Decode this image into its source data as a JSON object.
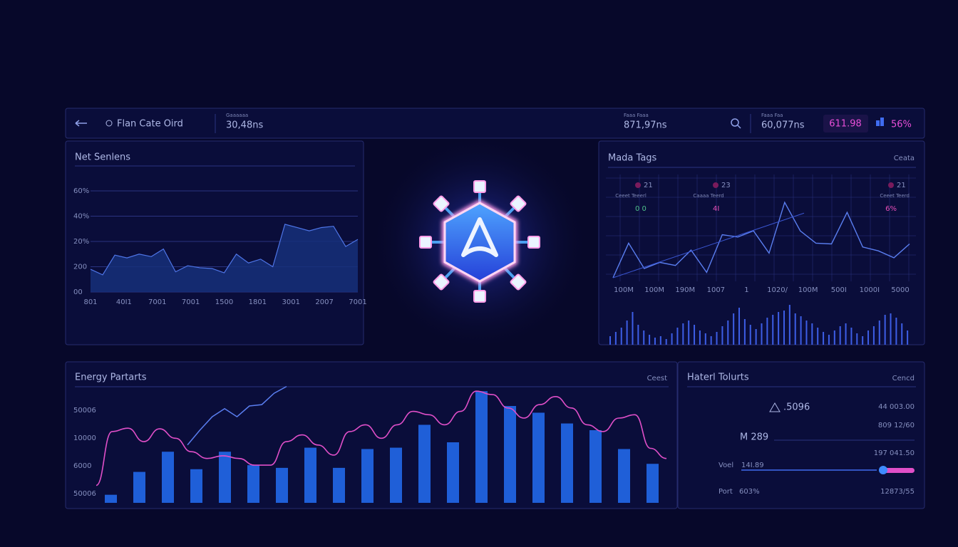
{
  "header": {
    "title": "Flan Cate Oird",
    "stats": [
      {
        "label": "Gaaaaaa",
        "value": "30,48ns"
      },
      {
        "label": "Faaa Faaa",
        "value": "871,97ns"
      },
      {
        "label": "Faaa Faa",
        "value": "60,077ns"
      }
    ],
    "badge": "611.98",
    "percent": "56%"
  },
  "net": {
    "title": "Net Senlens",
    "y_labels": [
      "00",
      "200",
      "20%",
      "40%",
      "60%"
    ],
    "x_labels": [
      "801",
      "40I1",
      "7001",
      "7001",
      "1500",
      "1801",
      "3001",
      "2007",
      "7001"
    ],
    "ylim": [
      0,
      4
    ],
    "values": [
      0.9,
      0.68,
      1.46,
      1.35,
      1.5,
      1.4,
      1.7,
      0.8,
      1.04,
      0.96,
      0.93,
      0.76,
      1.5,
      1.15,
      1.3,
      1.0,
      2.68,
      2.55,
      2.42,
      2.55,
      2.6,
      1.8,
      2.08
    ]
  },
  "tags": {
    "title": "Mada Tags",
    "action": "Ceata",
    "markers": [
      {
        "count": "21",
        "label": "Ceeet Teeerl",
        "sub": "0 0"
      },
      {
        "count": "23",
        "label": "Caaaa Teerd",
        "sub": "4I"
      },
      {
        "count": "21",
        "label": "Ceeet Teerd",
        "sub": "6%"
      }
    ],
    "x_labels": [
      "100M",
      "100M",
      "190M",
      "1007",
      "1",
      "1020/",
      "100M",
      "500I",
      "1000I",
      "5000"
    ],
    "ylim": [
      0,
      10
    ],
    "line": [
      0,
      4.5,
      1.2,
      2,
      1.6,
      3.6,
      0.7,
      5.6,
      5.3,
      6.1,
      3.2,
      9.8,
      6.1,
      4.5,
      4.4,
      8.5,
      4,
      3.5,
      2.6,
      4.4
    ],
    "trend": [
      0,
      8.4
    ],
    "bars": [
      12,
      18,
      24,
      34,
      46,
      28,
      20,
      14,
      10,
      12,
      8,
      16,
      24,
      30,
      34,
      28,
      20,
      16,
      12,
      18,
      26,
      34,
      44,
      52,
      36,
      28,
      22,
      30,
      38,
      42,
      46,
      48,
      56,
      44,
      40,
      34,
      30,
      24,
      18,
      14,
      20,
      26,
      30,
      24,
      16,
      12,
      20,
      26,
      34,
      42,
      44,
      38,
      30,
      20
    ]
  },
  "energy": {
    "title": "Energy Partarts",
    "action": "Ceest",
    "y_labels": [
      "50006",
      "10000",
      "6000",
      "50006"
    ],
    "ylim": [
      0,
      180
    ],
    "bars": [
      12,
      46,
      76,
      50,
      76,
      56,
      52,
      82,
      52,
      80,
      82,
      116,
      90,
      166,
      144,
      134,
      118,
      108,
      80,
      58
    ],
    "curve": [
      26,
      106,
      111,
      91,
      110,
      96,
      76,
      66,
      70,
      66,
      56,
      56,
      91,
      101,
      86,
      71,
      106,
      116,
      96,
      116,
      136,
      131,
      116,
      136,
      166,
      161,
      141,
      126,
      146,
      158,
      141,
      116,
      106,
      126,
      131,
      81,
      66
    ],
    "line": [
      86,
      108,
      128,
      140,
      128,
      144,
      146,
      163,
      173
    ]
  },
  "hatel": {
    "title": "Haterl Tolurts",
    "action": "Cencd",
    "lead": ".5096",
    "lead_right": "44 003.00",
    "row2_right": "809 12/60",
    "mid_label": "M 289",
    "row3_right": "197 041.50",
    "slider_label": "Voel",
    "slider_value": "14I.89",
    "port_label": "Port",
    "port_value": "603%",
    "port_right": "12873/55"
  }
}
